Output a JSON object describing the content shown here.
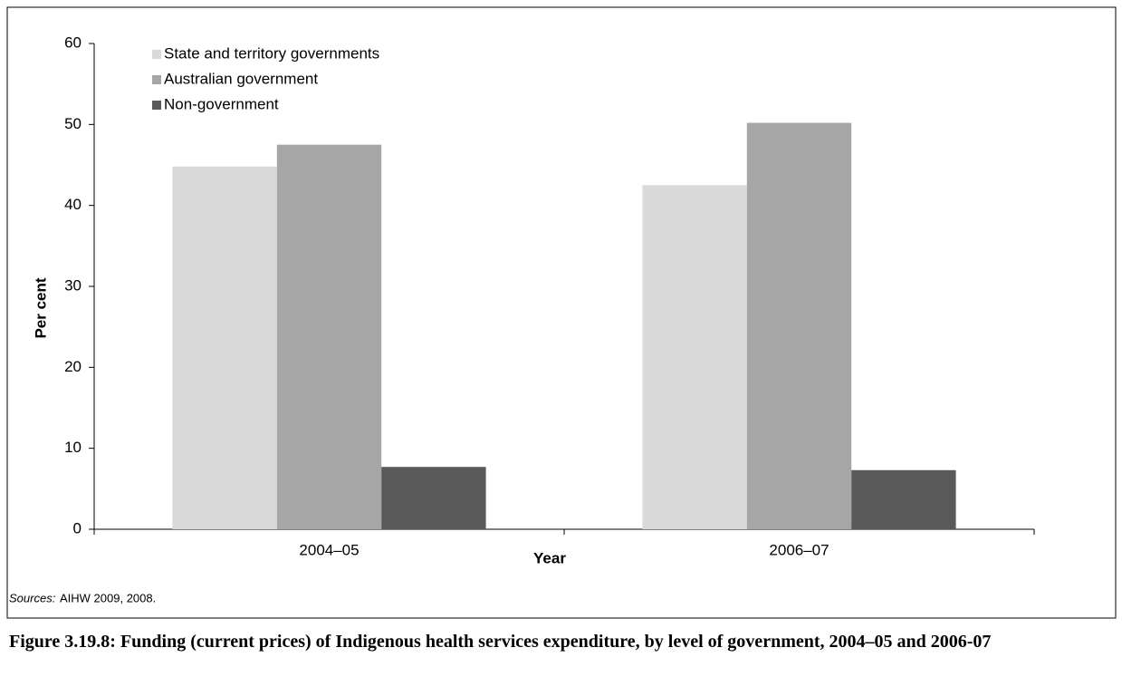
{
  "chart_data": {
    "type": "bar",
    "x_label": "Year",
    "y_label": "Per cent",
    "categories": [
      "2004–05",
      "2006–07"
    ],
    "series": [
      {
        "name": "State and territory governments",
        "color": "#d9d9d9",
        "values": [
          44.8,
          42.5
        ]
      },
      {
        "name": "Australian government",
        "color": "#a6a6a6",
        "values": [
          47.5,
          50.2
        ]
      },
      {
        "name": "Non-government",
        "color": "#595959",
        "values": [
          7.7,
          7.3
        ]
      }
    ],
    "ylim": [
      0,
      60
    ],
    "yticks": [
      0,
      10,
      20,
      30,
      40,
      50,
      60
    ],
    "grid": false,
    "legend": "top-left",
    "source_label": "Sources:",
    "source_text": "AIHW 2009, 2008.",
    "caption": "Figure 3.19.8: Funding (current prices) of Indigenous health services expenditure, by level of government, 2004–05 and 2006-07"
  }
}
